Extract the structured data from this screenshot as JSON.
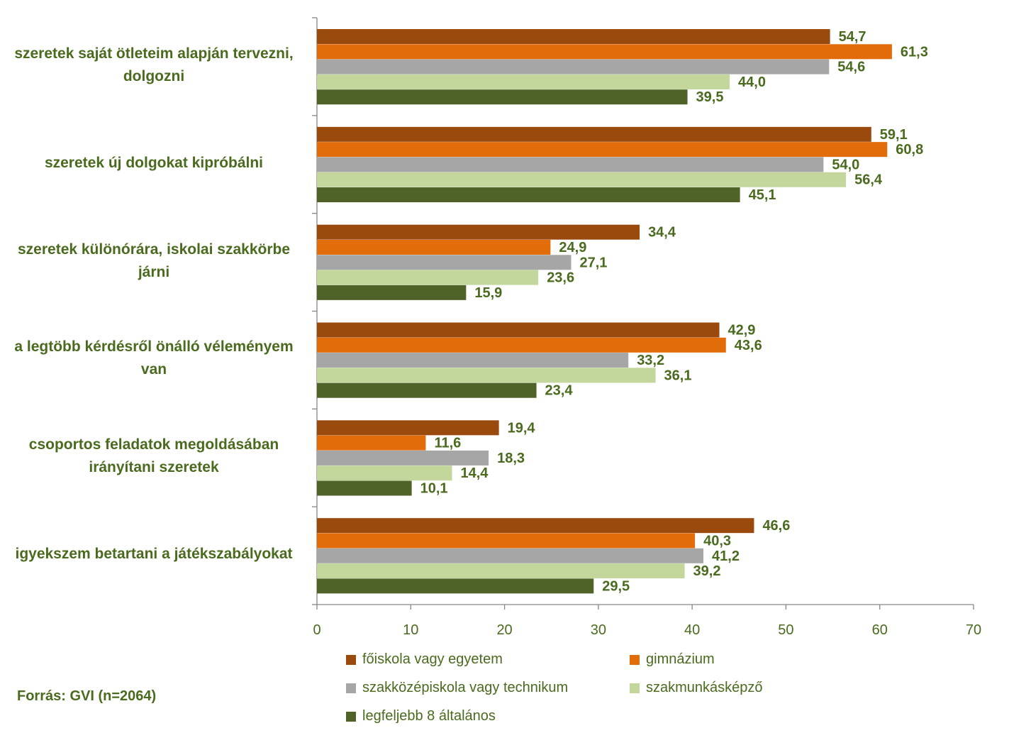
{
  "chart_data": {
    "type": "bar",
    "orientation": "horizontal",
    "categories": [
      "szeretek saját ötleteim alapján tervezni, dolgozni",
      "szeretek új dolgokat kipróbálni",
      "szeretek különórára, iskolai szakkörbe járni",
      "a legtöbb kérdésről önálló véleményem van",
      "csoportos feladatok megoldásában irányítani szeretek",
      "igyekszem betartani a játékszabályokat"
    ],
    "series": [
      {
        "name": "főiskola vagy egyetem",
        "color": "#9b4a0e",
        "values": [
          54.7,
          59.1,
          34.4,
          42.9,
          19.4,
          46.6
        ]
      },
      {
        "name": "gimnázium",
        "color": "#e36c0a",
        "values": [
          61.3,
          60.8,
          24.9,
          43.6,
          11.6,
          40.3
        ]
      },
      {
        "name": "szakközépiskola vagy technikum",
        "color": "#a6a6a6",
        "values": [
          54.6,
          54.0,
          27.1,
          33.2,
          18.3,
          41.2
        ]
      },
      {
        "name": "szakmunkásképző",
        "color": "#c3d69b",
        "values": [
          44.0,
          56.4,
          23.6,
          36.1,
          14.4,
          39.2
        ]
      },
      {
        "name": "legfeljebb 8 általános",
        "color": "#4f6228",
        "values": [
          39.5,
          45.1,
          15.9,
          23.4,
          10.1,
          29.5
        ]
      }
    ],
    "data_labels": [
      [
        "54,7",
        "61,3",
        "54,6",
        "44,0",
        "39,5"
      ],
      [
        "59,1",
        "60,8",
        "54,0",
        "56,4",
        "45,1"
      ],
      [
        "34,4",
        "24,9",
        "27,1",
        "23,6",
        "15,9"
      ],
      [
        "42,9",
        "43,6",
        "33,2",
        "36,1",
        "23,4"
      ],
      [
        "19,4",
        "11,6",
        "18,3",
        "14,4",
        "10,1"
      ],
      [
        "46,6",
        "40,3",
        "41,2",
        "39,2",
        "29,5"
      ]
    ],
    "x_ticks": [
      "0",
      "10",
      "20",
      "30",
      "40",
      "50",
      "60",
      "70"
    ],
    "xlim": [
      0,
      70
    ],
    "grid": false,
    "legend_position": "bottom"
  },
  "label_color": "#4a6a1e",
  "axis_color": "#868686",
  "category_label_lines": [
    [
      "szeretek saját ötleteim alapján tervezni,",
      "dolgozni"
    ],
    [
      "szeretek új dolgokat kipróbálni"
    ],
    [
      "szeretek különórára, iskolai szakkörbe",
      "járni"
    ],
    [
      "a legtöbb kérdésről önálló véleményem",
      "van"
    ],
    [
      "csoportos feladatok megoldásában",
      "irányítani szeretek"
    ],
    [
      "igyekszem betartani a játékszabályokat"
    ]
  ],
  "source": "Forrás: GVI (n=2064)"
}
